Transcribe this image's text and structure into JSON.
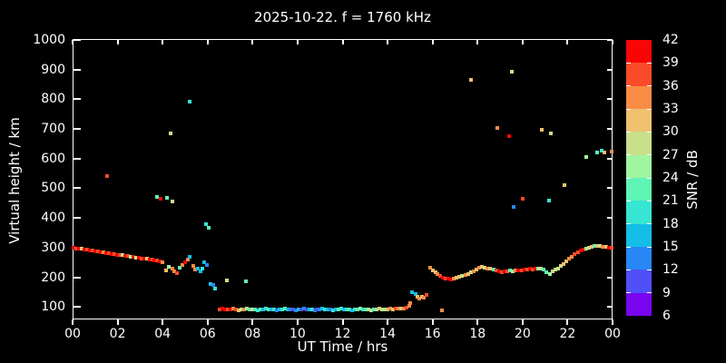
{
  "title": "2025-10-22. f = 1760 kHz",
  "colors": {
    "background": "#000000",
    "foreground": "#ffffff"
  },
  "axes": {
    "xlabel": "UT Time / hrs",
    "ylabel": "Virtual height / km",
    "x_tick_labels": [
      "00",
      "02",
      "04",
      "06",
      "08",
      "10",
      "12",
      "14",
      "16",
      "18",
      "20",
      "22",
      "00"
    ],
    "x_tick_hours": [
      0,
      2,
      4,
      6,
      8,
      10,
      12,
      14,
      16,
      18,
      20,
      22,
      24
    ],
    "y_tick_values": [
      100,
      200,
      300,
      400,
      500,
      600,
      700,
      800,
      900,
      1000
    ]
  },
  "colorbar": {
    "label": "SNR / dB",
    "tick_values": [
      42,
      39,
      36,
      33,
      30,
      27,
      24,
      21,
      18,
      15,
      12,
      9,
      6
    ],
    "min": 6,
    "max": 42,
    "step": 3,
    "segment_colors_low_to_high": [
      "#7a05f0",
      "#5050fa",
      "#2887f5",
      "#14bee6",
      "#37e6d2",
      "#5ff5b4",
      "#a0f5a0",
      "#c8e08c",
      "#f0c16e",
      "#fa8c46",
      "#fa4b28",
      "#fa0505"
    ]
  },
  "chart_data": {
    "type": "scatter",
    "title": "2025-10-22. f = 1760 kHz",
    "xlabel": "UT Time / hrs",
    "ylabel": "Virtual height / km",
    "color_label": "SNR / dB",
    "xlim": [
      0,
      24
    ],
    "ylim": [
      58,
      1003
    ],
    "clim": [
      6,
      42
    ],
    "grid": false,
    "points_hour_km_snr": [
      [
        0.05,
        300,
        40
      ],
      [
        0.17,
        298,
        37
      ],
      [
        0.29,
        296,
        40
      ],
      [
        0.41,
        297,
        31
      ],
      [
        0.53,
        294,
        40
      ],
      [
        0.65,
        292,
        37
      ],
      [
        0.77,
        291,
        40
      ],
      [
        0.89,
        289,
        37
      ],
      [
        1.01,
        288,
        40
      ],
      [
        1.13,
        286,
        37
      ],
      [
        1.25,
        285,
        40
      ],
      [
        1.37,
        283,
        34
      ],
      [
        1.49,
        282,
        40
      ],
      [
        1.61,
        280,
        37
      ],
      [
        1.73,
        279,
        40
      ],
      [
        1.85,
        277,
        37
      ],
      [
        1.97,
        276,
        40
      ],
      [
        2.09,
        275,
        37
      ],
      [
        2.21,
        274,
        28
      ],
      [
        2.33,
        272,
        40
      ],
      [
        2.45,
        271,
        37
      ],
      [
        2.57,
        270,
        25
      ],
      [
        2.69,
        268,
        40
      ],
      [
        2.81,
        267,
        28
      ],
      [
        2.93,
        266,
        40
      ],
      [
        3.05,
        264,
        37
      ],
      [
        3.17,
        263,
        40
      ],
      [
        3.29,
        262,
        31
      ],
      [
        3.41,
        260,
        40
      ],
      [
        3.53,
        259,
        37
      ],
      [
        3.65,
        257,
        40
      ],
      [
        3.77,
        256,
        37
      ],
      [
        3.89,
        254,
        40
      ],
      [
        4.01,
        252,
        34
      ],
      [
        4.16,
        223,
        31
      ],
      [
        4.28,
        235,
        25
      ],
      [
        4.42,
        228,
        34
      ],
      [
        4.52,
        220,
        34
      ],
      [
        4.64,
        215,
        37
      ],
      [
        4.76,
        232,
        22
      ],
      [
        4.89,
        241,
        34
      ],
      [
        5.01,
        250,
        40
      ],
      [
        5.13,
        259,
        34
      ],
      [
        5.22,
        268,
        16
      ],
      [
        5.37,
        239,
        34
      ],
      [
        5.45,
        226,
        34
      ],
      [
        5.58,
        230,
        16
      ],
      [
        5.7,
        220,
        16
      ],
      [
        5.78,
        229,
        19
      ],
      [
        5.86,
        250,
        16
      ],
      [
        5.95,
        240,
        12
      ],
      [
        6.14,
        177,
        16
      ],
      [
        6.26,
        174,
        13
      ],
      [
        6.34,
        162,
        19
      ],
      [
        6.87,
        190,
        28
      ],
      [
        7.72,
        187,
        22
      ],
      [
        1.53,
        541,
        37
      ],
      [
        3.76,
        471,
        22
      ],
      [
        3.92,
        465,
        40
      ],
      [
        4.2,
        468,
        22
      ],
      [
        4.44,
        456,
        28
      ],
      [
        4.36,
        685,
        28
      ],
      [
        5.21,
        792,
        19
      ],
      [
        5.94,
        379,
        19
      ],
      [
        6.06,
        367,
        22
      ],
      [
        6.55,
        92,
        37
      ],
      [
        6.67,
        94,
        40
      ],
      [
        6.79,
        91,
        40
      ],
      [
        6.91,
        93,
        37
      ],
      [
        7.03,
        92,
        40
      ],
      [
        7.15,
        95,
        34
      ],
      [
        7.27,
        92,
        37
      ],
      [
        7.39,
        90,
        31
      ],
      [
        7.51,
        93,
        28
      ],
      [
        7.63,
        92,
        34
      ],
      [
        7.75,
        94,
        25
      ],
      [
        7.87,
        91,
        22
      ],
      [
        7.99,
        93,
        28
      ],
      [
        8.11,
        92,
        22
      ],
      [
        8.23,
        90,
        19
      ],
      [
        8.35,
        93,
        22
      ],
      [
        8.47,
        92,
        16
      ],
      [
        8.59,
        94,
        19
      ],
      [
        8.71,
        91,
        22
      ],
      [
        8.83,
        93,
        16
      ],
      [
        8.95,
        92,
        19
      ],
      [
        9.07,
        90,
        13
      ],
      [
        9.19,
        93,
        16
      ],
      [
        9.31,
        92,
        19
      ],
      [
        9.43,
        94,
        22
      ],
      [
        9.55,
        91,
        16
      ],
      [
        9.67,
        93,
        13
      ],
      [
        9.79,
        92,
        10
      ],
      [
        9.91,
        90,
        13
      ],
      [
        10.03,
        93,
        16
      ],
      [
        10.15,
        92,
        10
      ],
      [
        10.27,
        94,
        13
      ],
      [
        10.39,
        91,
        10
      ],
      [
        10.51,
        93,
        16
      ],
      [
        10.63,
        92,
        19
      ],
      [
        10.75,
        90,
        13
      ],
      [
        10.87,
        93,
        10
      ],
      [
        10.99,
        92,
        13
      ],
      [
        11.11,
        94,
        16
      ],
      [
        11.23,
        91,
        19
      ],
      [
        11.35,
        93,
        16
      ],
      [
        11.47,
        92,
        13
      ],
      [
        11.59,
        90,
        19
      ],
      [
        11.71,
        93,
        16
      ],
      [
        11.83,
        92,
        22
      ],
      [
        11.95,
        94,
        19
      ],
      [
        12.07,
        91,
        16
      ],
      [
        12.19,
        93,
        19
      ],
      [
        12.31,
        92,
        22
      ],
      [
        12.43,
        90,
        16
      ],
      [
        12.55,
        93,
        19
      ],
      [
        12.67,
        92,
        22
      ],
      [
        12.79,
        94,
        25
      ],
      [
        12.91,
        91,
        19
      ],
      [
        13.03,
        93,
        22
      ],
      [
        13.15,
        92,
        25
      ],
      [
        13.27,
        90,
        28
      ],
      [
        13.39,
        93,
        22
      ],
      [
        13.51,
        92,
        25
      ],
      [
        13.63,
        94,
        31
      ],
      [
        13.75,
        91,
        28
      ],
      [
        13.87,
        93,
        25
      ],
      [
        13.99,
        92,
        31
      ],
      [
        14.11,
        94,
        34
      ],
      [
        14.23,
        93,
        31
      ],
      [
        14.35,
        95,
        37
      ],
      [
        14.47,
        94,
        34
      ],
      [
        14.59,
        96,
        31
      ],
      [
        14.71,
        94,
        34
      ],
      [
        14.83,
        98,
        37
      ],
      [
        14.95,
        103,
        34
      ],
      [
        15.02,
        113,
        34
      ],
      [
        15.1,
        150,
        16
      ],
      [
        15.25,
        144,
        16
      ],
      [
        15.32,
        133,
        31
      ],
      [
        15.42,
        128,
        34
      ],
      [
        15.52,
        135,
        31
      ],
      [
        15.62,
        130,
        34
      ],
      [
        15.72,
        140,
        37
      ],
      [
        16.42,
        90,
        34
      ],
      [
        15.9,
        232,
        34
      ],
      [
        16.02,
        224,
        31
      ],
      [
        16.12,
        216,
        31
      ],
      [
        16.22,
        210,
        34
      ],
      [
        16.35,
        205,
        37
      ],
      [
        16.47,
        200,
        40
      ],
      [
        16.58,
        197,
        37
      ],
      [
        16.7,
        195,
        40
      ],
      [
        16.82,
        194,
        40
      ],
      [
        16.95,
        196,
        34
      ],
      [
        17.07,
        199,
        31
      ],
      [
        17.2,
        202,
        31
      ],
      [
        17.32,
        205,
        28
      ],
      [
        17.45,
        208,
        34
      ],
      [
        17.57,
        212,
        31
      ],
      [
        17.7,
        217,
        28
      ],
      [
        17.82,
        221,
        34
      ],
      [
        17.95,
        227,
        31
      ],
      [
        18.07,
        232,
        34
      ],
      [
        18.2,
        235,
        31
      ],
      [
        18.32,
        233,
        28
      ],
      [
        18.45,
        230,
        34
      ],
      [
        18.57,
        228,
        31
      ],
      [
        18.7,
        225,
        22
      ],
      [
        18.82,
        222,
        37
      ],
      [
        18.95,
        220,
        40
      ],
      [
        19.07,
        218,
        37
      ],
      [
        19.2,
        219,
        40
      ],
      [
        19.32,
        221,
        37
      ],
      [
        19.45,
        222,
        22
      ],
      [
        19.57,
        220,
        25
      ],
      [
        19.7,
        222,
        34
      ],
      [
        19.82,
        224,
        40
      ],
      [
        19.95,
        223,
        37
      ],
      [
        20.07,
        225,
        40
      ],
      [
        20.2,
        226,
        37
      ],
      [
        20.32,
        228,
        40
      ],
      [
        20.45,
        227,
        37
      ],
      [
        20.57,
        228,
        40
      ],
      [
        20.7,
        229,
        25
      ],
      [
        20.82,
        230,
        28
      ],
      [
        20.95,
        226,
        22
      ],
      [
        21.07,
        216,
        22
      ],
      [
        21.2,
        210,
        25
      ],
      [
        21.32,
        219,
        28
      ],
      [
        21.45,
        225,
        28
      ],
      [
        21.57,
        230,
        28
      ],
      [
        21.7,
        237,
        28
      ],
      [
        21.82,
        245,
        31
      ],
      [
        21.95,
        254,
        31
      ],
      [
        22.07,
        262,
        34
      ],
      [
        22.2,
        270,
        34
      ],
      [
        22.32,
        277,
        37
      ],
      [
        22.45,
        284,
        37
      ],
      [
        22.57,
        289,
        40
      ],
      [
        22.7,
        293,
        40
      ],
      [
        22.82,
        297,
        25
      ],
      [
        22.95,
        301,
        28
      ],
      [
        23.07,
        304,
        31
      ],
      [
        23.2,
        305,
        22
      ],
      [
        23.32,
        306,
        31
      ],
      [
        23.45,
        305,
        28
      ],
      [
        23.57,
        304,
        34
      ],
      [
        23.7,
        302,
        31
      ],
      [
        23.82,
        301,
        40
      ],
      [
        23.95,
        300,
        37
      ],
      [
        17.7,
        865,
        31
      ],
      [
        19.52,
        893,
        28
      ],
      [
        18.88,
        703,
        34
      ],
      [
        19.42,
        676,
        40
      ],
      [
        20.85,
        697,
        31
      ],
      [
        21.25,
        685,
        28
      ],
      [
        21.85,
        511,
        31
      ],
      [
        20.02,
        465,
        37
      ],
      [
        21.18,
        459,
        19
      ],
      [
        19.6,
        437,
        12
      ],
      [
        22.82,
        606,
        25
      ],
      [
        23.32,
        621,
        22
      ],
      [
        23.5,
        627,
        19
      ],
      [
        23.65,
        621,
        31
      ],
      [
        23.95,
        624,
        34
      ]
    ]
  }
}
